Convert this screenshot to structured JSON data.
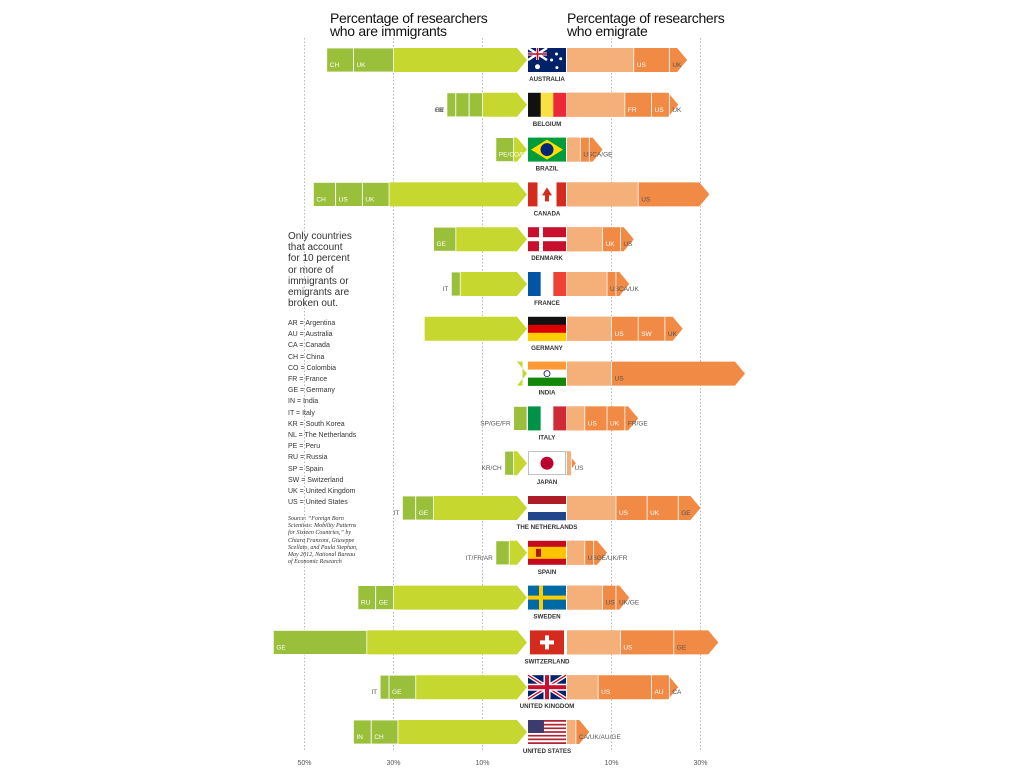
{
  "headings": {
    "immigrants": [
      "Percentage of researchers",
      "who are immigrants"
    ],
    "emigrate": [
      "Percentage of researchers",
      "who emigrate"
    ]
  },
  "note": [
    "Only countries",
    "that account",
    "for 10 percent",
    "or more of",
    "immigrants or",
    "emigrants are",
    "broken out."
  ],
  "legend": [
    "AR = Argentina",
    "AU = Australia",
    "CA = Canada",
    "CH = China",
    "CO = Colombia",
    "FR = France",
    "GE = Germany",
    "IN = India",
    "IT = Italy",
    "KR = South Korea",
    "NL = The Netherlands",
    "PE = Peru",
    "RU = Russia",
    "SP = Spain",
    "SW = Switzerland",
    "UK = United Kingdom",
    "US = United States"
  ],
  "source": [
    "Source: “Foreign Born",
    "Scientists: Mobility Patterns",
    "for Sixteen Countries,” by",
    "Chiara Franzoni, Giuseppe",
    "Scellato, and Paula Stephan,",
    "May 2012, National Bureau",
    "of Economic Research"
  ],
  "colors": {
    "immigrant_main": "#c6d72f",
    "immigrant_segment": "#9abf3a",
    "emigrant_light": "#f5b07a",
    "emigrant_main": "#f08a45",
    "gridline": "#999999"
  },
  "chart_data": {
    "type": "bar",
    "subtype": "diverging-stacked-arrows",
    "xlabel": "",
    "ylabel": "",
    "axis_ticks_left": [
      "50%",
      "30%",
      "10%"
    ],
    "axis_ticks_right": [
      "10%",
      "30%"
    ],
    "xlim_left": [
      0,
      55
    ],
    "xlim_right": [
      0,
      55
    ],
    "grid": true,
    "unit": "percent",
    "countries": [
      {
        "name": "AUSTRALIA",
        "flag": "au",
        "immigrant_total": 45,
        "immigrant_segments": [
          {
            "label": "CH",
            "value": 6
          },
          {
            "label": "UK",
            "value": 9
          }
        ],
        "emigrant_total": 27,
        "emigrant_segments": [
          {
            "label": "US",
            "value": 8
          },
          {
            "label": "UK",
            "value": 4
          }
        ]
      },
      {
        "name": "BELGIUM",
        "flag": "be",
        "immigrant_total": 18,
        "immigrant_segments": [
          {
            "label": "IT",
            "value": 2
          },
          {
            "label": "GE",
            "value": 3
          },
          {
            "label": "FR",
            "value": 3
          }
        ],
        "emigrant_total": 25,
        "emigrant_segments": [
          {
            "label": "FR",
            "value": 6
          },
          {
            "label": "US",
            "value": 4
          },
          {
            "label": "UK",
            "value": 2
          }
        ]
      },
      {
        "name": "BRAZIL",
        "flag": "br",
        "immigrant_total": 7,
        "immigrant_segments": [
          {
            "label": "PE/CO/FR/AR",
            "value": 4
          }
        ],
        "emigrant_total": 8,
        "emigrant_segments": [
          {
            "label": "US",
            "value": 2
          },
          {
            "label": "CA/GE",
            "value": 3
          }
        ]
      },
      {
        "name": "CANADA",
        "flag": "ca",
        "immigrant_total": 48,
        "immigrant_segments": [
          {
            "label": "CH",
            "value": 5
          },
          {
            "label": "US",
            "value": 6
          },
          {
            "label": "UK",
            "value": 6
          }
        ],
        "emigrant_total": 32,
        "emigrant_segments": [
          {
            "label": "US",
            "value": 16
          }
        ]
      },
      {
        "name": "DENMARK",
        "flag": "dk",
        "immigrant_total": 21,
        "immigrant_segments": [
          {
            "label": "GE",
            "value": 5
          }
        ],
        "emigrant_total": 15,
        "emigrant_segments": [
          {
            "label": "UK",
            "value": 4
          },
          {
            "label": "US",
            "value": 3
          }
        ]
      },
      {
        "name": "FRANCE",
        "flag": "fr",
        "immigrant_total": 17,
        "immigrant_segments": [
          {
            "label": "IT",
            "value": 2
          }
        ],
        "emigrant_total": 14,
        "emigrant_segments": [
          {
            "label": "US",
            "value": 2
          },
          {
            "label": "CA/UK",
            "value": 3
          }
        ]
      },
      {
        "name": "GERMANY",
        "flag": "de",
        "immigrant_total": 23,
        "immigrant_segments": [],
        "emigrant_total": 26,
        "emigrant_segments": [
          {
            "label": "US",
            "value": 6
          },
          {
            "label": "SW",
            "value": 6
          },
          {
            "label": "UK",
            "value": 4
          }
        ]
      },
      {
        "name": "INDIA",
        "flag": "in",
        "immigrant_total": 1,
        "immigrant_segments": [],
        "emigrant_total": 40,
        "emigrant_segments": [
          {
            "label": "US",
            "value": 30
          }
        ]
      },
      {
        "name": "ITALY",
        "flag": "it",
        "immigrant_total": 3,
        "immigrant_segments": [
          {
            "label": "SP/GE/FR",
            "value": 3
          }
        ],
        "emigrant_total": 16,
        "emigrant_segments": [
          {
            "label": "US",
            "value": 5
          },
          {
            "label": "UK",
            "value": 4
          },
          {
            "label": "FR/GE",
            "value": 3
          }
        ]
      },
      {
        "name": "JAPAN",
        "flag": "jp",
        "immigrant_total": 5,
        "immigrant_segments": [
          {
            "label": "KR/CH",
            "value": 2
          }
        ],
        "emigrant_total": 2,
        "emigrant_segments": [
          {
            "label": "US",
            "value": 1
          }
        ]
      },
      {
        "name": "THE NETHERLANDS",
        "flag": "nl",
        "immigrant_total": 28,
        "immigrant_segments": [
          {
            "label": "IT",
            "value": 3
          },
          {
            "label": "GE",
            "value": 4
          }
        ],
        "emigrant_total": 30,
        "emigrant_segments": [
          {
            "label": "US",
            "value": 7
          },
          {
            "label": "UK",
            "value": 7
          },
          {
            "label": "GE",
            "value": 5
          }
        ]
      },
      {
        "name": "SPAIN",
        "flag": "es",
        "immigrant_total": 7,
        "immigrant_segments": [
          {
            "label": "IT/FR/AR",
            "value": 3
          }
        ],
        "emigrant_total": 9,
        "emigrant_segments": [
          {
            "label": "US",
            "value": 2
          },
          {
            "label": "GE/UK/FR",
            "value": 3
          }
        ]
      },
      {
        "name": "SWEDEN",
        "flag": "se",
        "immigrant_total": 38,
        "immigrant_segments": [
          {
            "label": "RU",
            "value": 4
          },
          {
            "label": "GE",
            "value": 4
          }
        ],
        "emigrant_total": 14,
        "emigrant_segments": [
          {
            "label": "US",
            "value": 3
          },
          {
            "label": "UK/GE",
            "value": 3
          }
        ]
      },
      {
        "name": "SWITZERLAND",
        "flag": "ch",
        "immigrant_total": 57,
        "immigrant_segments": [
          {
            "label": "GE",
            "value": 21
          }
        ],
        "emigrant_total": 34,
        "emigrant_segments": [
          {
            "label": "US",
            "value": 12
          },
          {
            "label": "GE",
            "value": 10
          }
        ]
      },
      {
        "name": "UNITED KINGDOM",
        "flag": "uk",
        "immigrant_total": 33,
        "immigrant_segments": [
          {
            "label": "IT",
            "value": 2
          },
          {
            "label": "GE",
            "value": 6
          }
        ],
        "emigrant_total": 25,
        "emigrant_segments": [
          {
            "label": "US",
            "value": 12
          },
          {
            "label": "AU",
            "value": 4
          },
          {
            "label": "CA",
            "value": 2
          }
        ]
      },
      {
        "name": "UNITED STATES",
        "flag": "us",
        "immigrant_total": 39,
        "immigrant_segments": [
          {
            "label": "IN",
            "value": 4
          },
          {
            "label": "CH",
            "value": 6
          }
        ],
        "emigrant_total": 5,
        "emigrant_segments": [
          {
            "label": "CA/UK/AU/GE",
            "value": 3
          }
        ]
      }
    ]
  }
}
